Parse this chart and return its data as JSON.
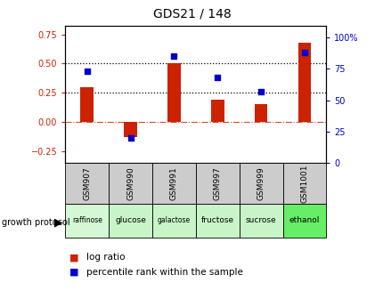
{
  "title": "GDS21 / 148",
  "samples": [
    "GSM907",
    "GSM990",
    "GSM991",
    "GSM997",
    "GSM999",
    "GSM1001"
  ],
  "protocols": [
    "raffinose",
    "glucose",
    "galactose",
    "fructose",
    "sucrose",
    "ethanol"
  ],
  "log_ratio": [
    0.3,
    -0.13,
    0.5,
    0.19,
    0.155,
    0.68
  ],
  "percentile_rank": [
    73,
    20,
    85,
    68,
    57,
    88
  ],
  "bar_color": "#cc2200",
  "dot_color": "#0000cc",
  "ylim_left": [
    -0.35,
    0.82
  ],
  "ylim_right": [
    0,
    109
  ],
  "yticks_left": [
    -0.25,
    0.0,
    0.25,
    0.5,
    0.75
  ],
  "yticks_right": [
    0,
    25,
    50,
    75,
    100
  ],
  "hline_y": [
    0.25,
    0.5
  ],
  "zero_line_y": 0.0,
  "protocol_colors": [
    "#d4f7d4",
    "#c8f5c8",
    "#c8f5c8",
    "#c8f5c8",
    "#c8f5c8",
    "#66ee66"
  ],
  "gsm_bg": "#cccccc",
  "legend_log_ratio": "log ratio",
  "legend_percentile": "percentile rank within the sample",
  "bar_width": 0.3
}
